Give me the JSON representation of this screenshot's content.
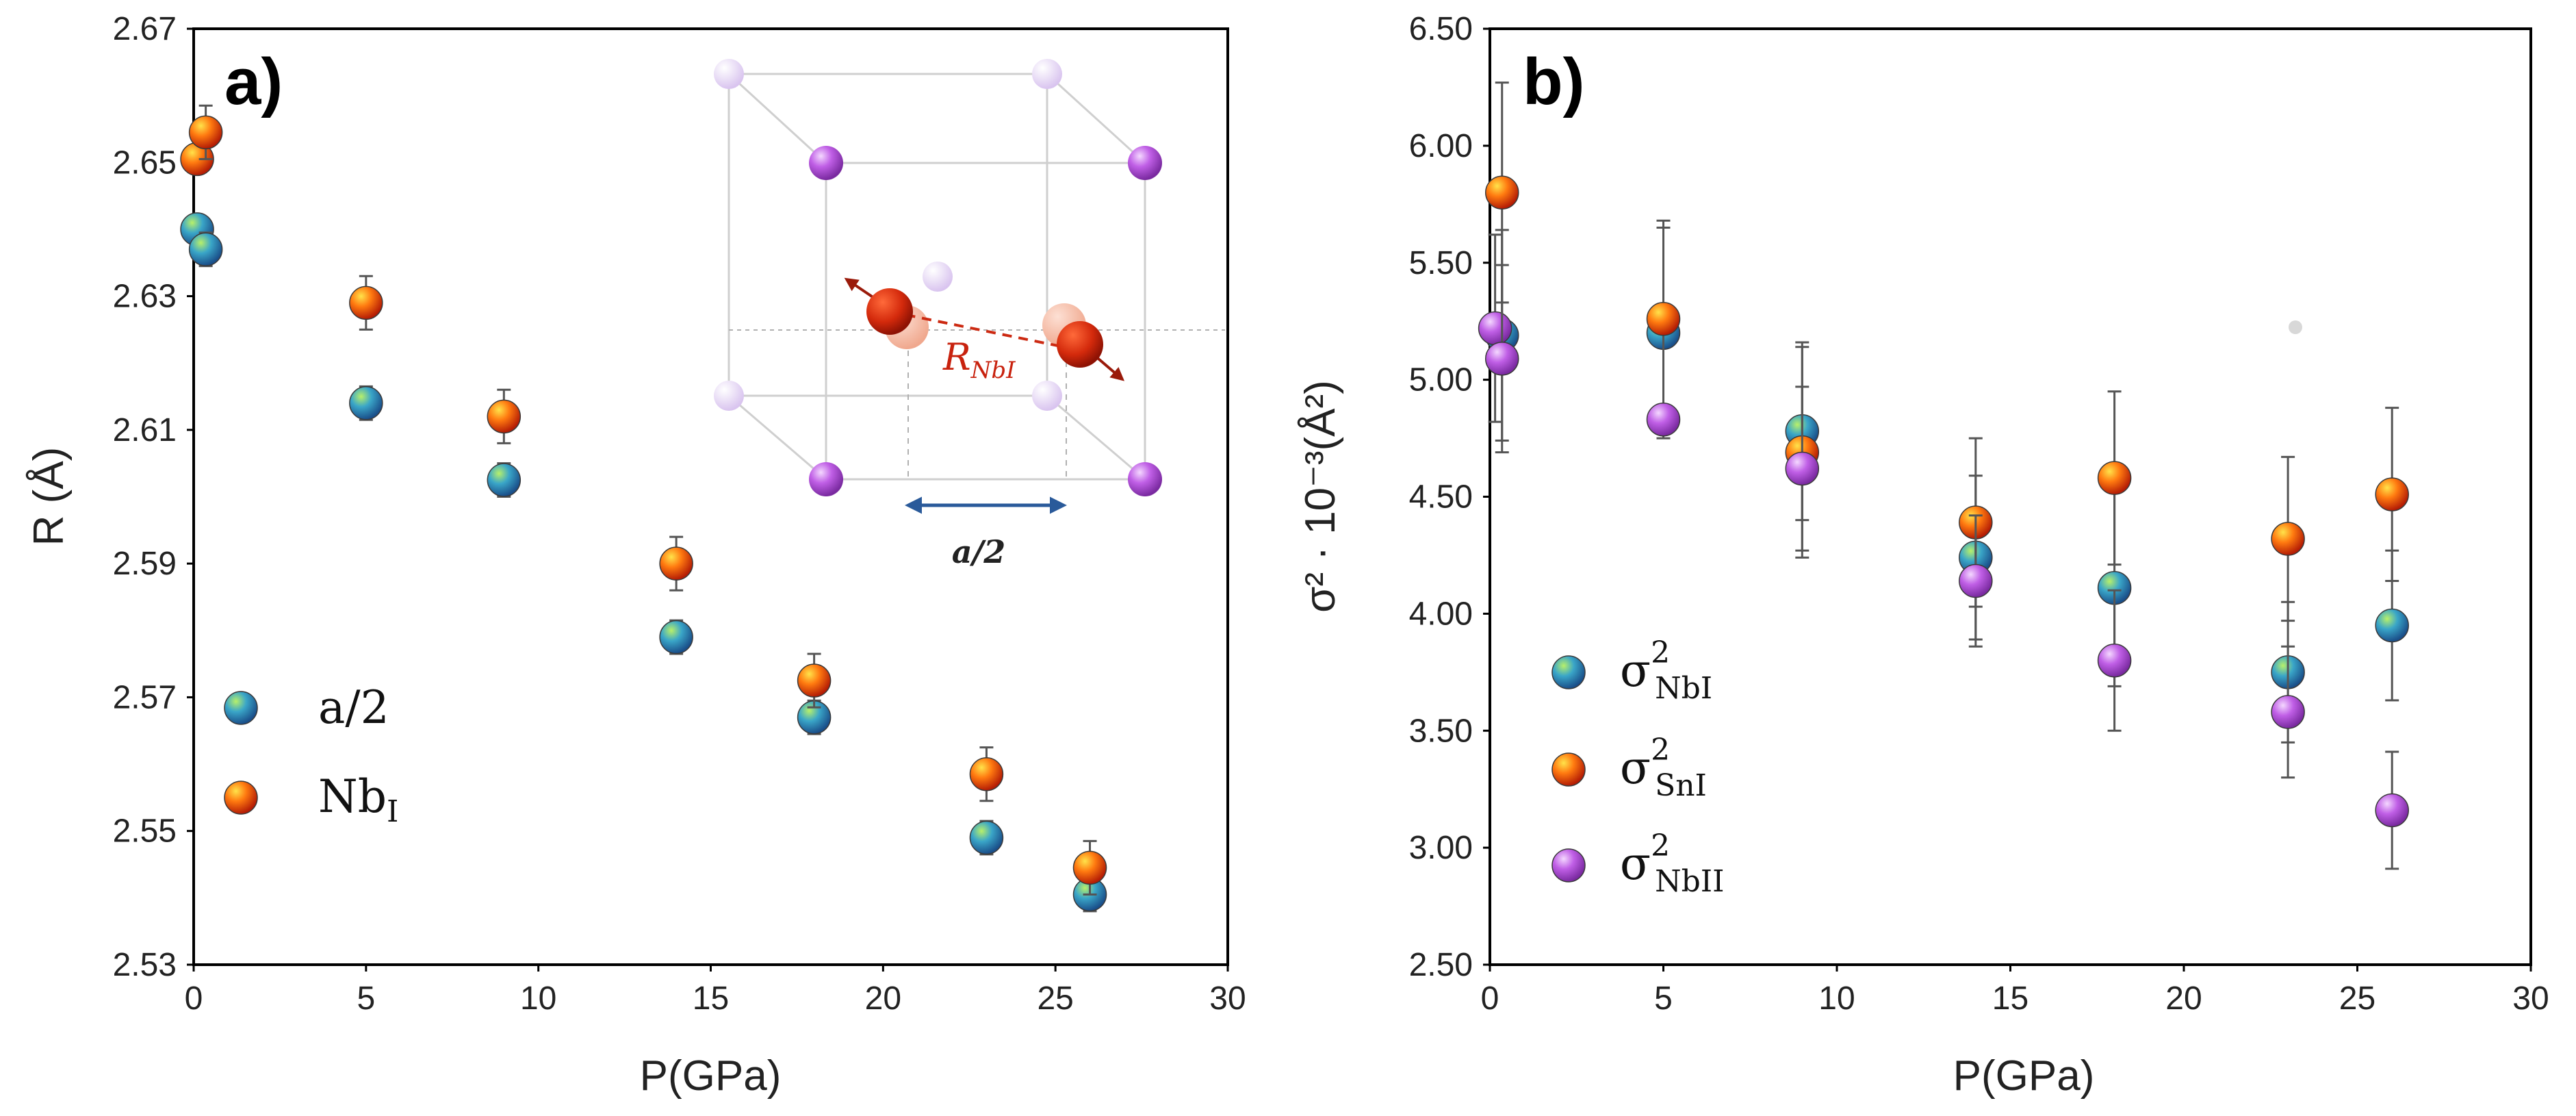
{
  "chart_data": [
    {
      "type": "scatter",
      "panel_label": "a)",
      "xlabel": "P(GPa)",
      "ylabel": "R (Å)",
      "xlim": [
        0,
        30
      ],
      "ylim": [
        2.53,
        2.67
      ],
      "xticks": [
        "0",
        "5",
        "10",
        "15",
        "20",
        "25",
        "30"
      ],
      "yticks": [
        "2.53",
        "2.55",
        "2.57",
        "2.59",
        "2.61",
        "2.63",
        "2.65",
        "2.67"
      ],
      "legend_position": "lower-left",
      "series": [
        {
          "name": "a/2",
          "legend_main": "a/2",
          "legend_sub": "",
          "marker": "sphere-green-blue",
          "x": [
            0.1,
            0.35,
            5,
            9,
            14,
            18,
            23,
            26
          ],
          "y": [
            2.64,
            2.637,
            2.614,
            2.6025,
            2.579,
            2.567,
            2.549,
            2.5405
          ],
          "err": [
            0.0,
            0.0025,
            0.0025,
            0.0025,
            0.0025,
            0.0025,
            0.0025,
            0.0025
          ]
        },
        {
          "name": "NbI",
          "legend_main": "Nb",
          "legend_sub": "I",
          "marker": "sphere-red-orange",
          "x": [
            0.1,
            0.35,
            5,
            9,
            14,
            18,
            23,
            26
          ],
          "y": [
            2.6505,
            2.6545,
            2.629,
            2.612,
            2.59,
            2.5725,
            2.5585,
            2.5445
          ],
          "err": [
            0.0,
            0.004,
            0.004,
            0.004,
            0.004,
            0.004,
            0.004,
            0.004
          ]
        }
      ],
      "inset": {
        "distance_label_main": "R",
        "distance_label_sub": "NbI",
        "lattice_label": "a/2"
      }
    },
    {
      "type": "scatter",
      "panel_label": "b)",
      "xlabel": "P(GPa)",
      "ylabel": "σ² · 10⁻³(Å²)",
      "xlim": [
        0,
        30
      ],
      "ylim": [
        2.5,
        6.5
      ],
      "xticks": [
        "0",
        "5",
        "10",
        "15",
        "20",
        "25",
        "30"
      ],
      "yticks": [
        "2.50",
        "3.00",
        "3.50",
        "4.00",
        "4.50",
        "5.00",
        "5.50",
        "6.00",
        "6.50"
      ],
      "legend_position": "lower-left",
      "series": [
        {
          "name": "σ²NbI",
          "legend_main": "σ",
          "legend_sup": "2",
          "legend_sub": "NbI",
          "marker": "sphere-green-blue",
          "x": [
            0.35,
            5,
            9,
            14,
            18,
            23,
            26
          ],
          "y": [
            5.19,
            5.2,
            4.78,
            4.24,
            4.11,
            3.75,
            3.95
          ],
          "err": [
            0.45,
            0.45,
            0.38,
            0.35,
            0.42,
            0.3,
            0.32
          ]
        },
        {
          "name": "σ²SnI",
          "legend_main": "σ",
          "legend_sup": "2",
          "legend_sub": "SnI",
          "marker": "sphere-red-orange",
          "x": [
            0.35,
            5,
            9,
            14,
            18,
            23,
            26
          ],
          "y": [
            5.8,
            5.26,
            4.69,
            4.39,
            4.58,
            4.32,
            4.51
          ],
          "err": [
            0.47,
            0.42,
            0.45,
            0.36,
            0.37,
            0.35,
            0.37
          ]
        },
        {
          "name": "σ²NbII",
          "legend_main": "σ",
          "legend_sup": "2",
          "legend_sub": "NbII",
          "marker": "sphere-purple",
          "x": [
            0.15,
            0.35,
            5,
            9,
            14,
            18,
            23,
            26
          ],
          "y": [
            5.22,
            5.09,
            4.83,
            4.62,
            4.14,
            3.8,
            3.58,
            3.16
          ],
          "err": [
            0.4,
            0.4,
            0.0,
            0.35,
            0.28,
            0.3,
            0.28,
            0.25
          ]
        }
      ]
    }
  ]
}
